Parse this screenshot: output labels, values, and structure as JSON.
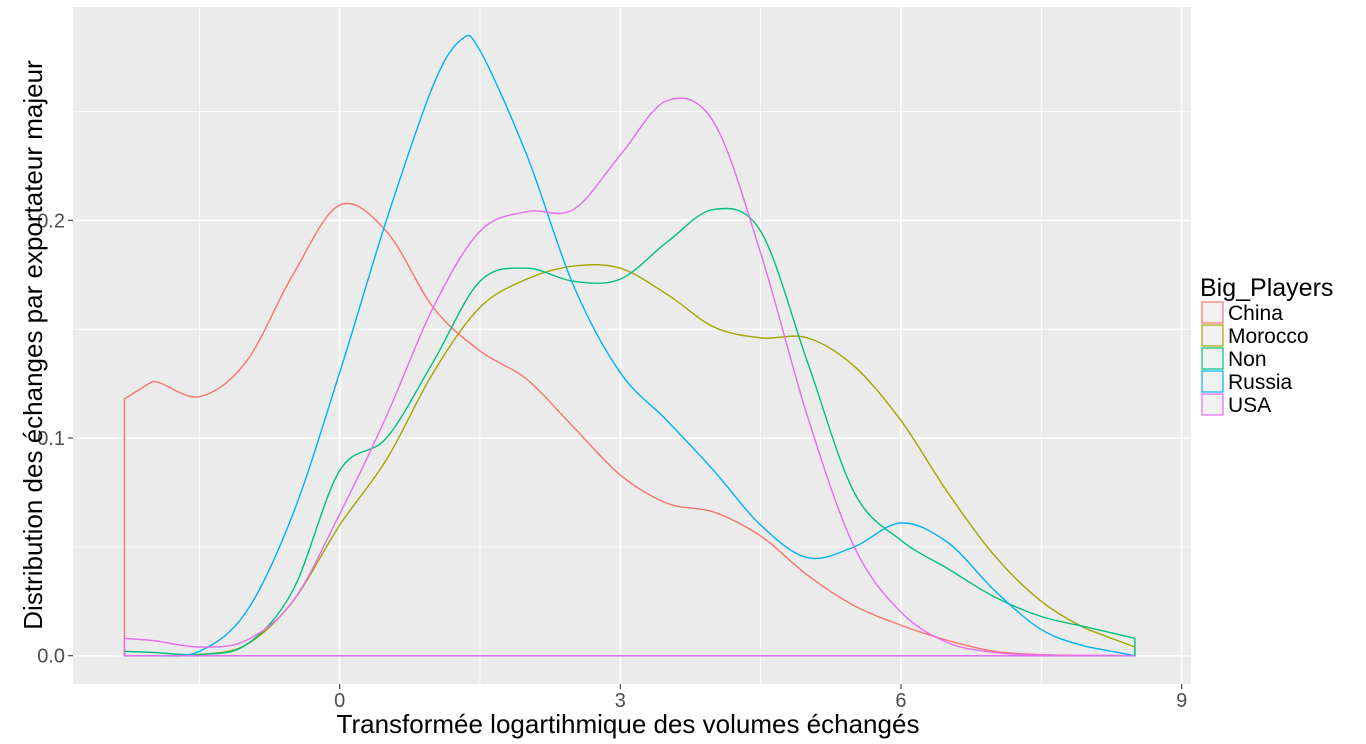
{
  "chart_data": {
    "type": "line",
    "subtype": "density",
    "xlabel": "Transformée logartihmique des volumes échangés",
    "ylabel": "Distribution des échanges par exportateur majeur",
    "xlim": [
      -2.85,
      9.1
    ],
    "ylim": [
      -0.013,
      0.298
    ],
    "x_ticks": [
      0,
      3,
      6,
      9
    ],
    "x_tick_labels": [
      "0",
      "3",
      "6",
      "9"
    ],
    "y_ticks": [
      0.0,
      0.1,
      0.2
    ],
    "y_tick_labels": [
      "0.0",
      "0.1",
      "0.2"
    ],
    "grid": true,
    "panel_background": "#ebebeb",
    "grid_color": "#ffffff",
    "legend": {
      "title": "Big_Players",
      "position": "right",
      "entries": [
        "China",
        "Morocco",
        "Non",
        "Russia",
        "USA"
      ]
    },
    "series": [
      {
        "name": "China",
        "color": "#F8766D",
        "x": [
          -2.3,
          -2.3,
          -2.0,
          -1.5,
          -1.0,
          -0.5,
          0.0,
          0.5,
          1.0,
          1.5,
          2.0,
          2.5,
          3.0,
          3.5,
          4.0,
          4.5,
          5.0,
          5.5,
          6.0,
          6.5,
          7.0,
          7.5,
          8.0,
          8.5,
          8.5
        ],
        "y": [
          0.0,
          0.118,
          0.126,
          0.119,
          0.135,
          0.175,
          0.207,
          0.195,
          0.16,
          0.14,
          0.127,
          0.105,
          0.083,
          0.07,
          0.066,
          0.055,
          0.037,
          0.023,
          0.014,
          0.007,
          0.002,
          0.0005,
          0.0001,
          0.0,
          0.0
        ]
      },
      {
        "name": "Morocco",
        "color": "#A3A500",
        "x": [
          -2.3,
          -2.0,
          -1.5,
          -1.0,
          -0.5,
          0.0,
          0.5,
          1.0,
          1.5,
          2.0,
          2.5,
          3.0,
          3.5,
          4.0,
          4.5,
          5.0,
          5.5,
          6.0,
          6.5,
          7.0,
          7.5,
          8.0,
          8.5,
          8.5,
          -2.3
        ],
        "y": [
          0.0,
          0.0,
          0.0005,
          0.005,
          0.025,
          0.06,
          0.09,
          0.13,
          0.16,
          0.173,
          0.179,
          0.178,
          0.166,
          0.151,
          0.146,
          0.146,
          0.133,
          0.108,
          0.075,
          0.046,
          0.025,
          0.012,
          0.004,
          0.0,
          0.0
        ]
      },
      {
        "name": "Non",
        "color": "#00BF7D",
        "x": [
          -2.3,
          -2.0,
          -1.5,
          -1.0,
          -0.5,
          0.0,
          0.5,
          1.0,
          1.5,
          2.0,
          2.5,
          3.0,
          3.5,
          4.0,
          4.5,
          5.0,
          5.5,
          6.0,
          6.5,
          7.0,
          7.5,
          8.0,
          8.5,
          8.5,
          -2.3
        ],
        "y": [
          0.002,
          0.0015,
          0.0006,
          0.005,
          0.03,
          0.085,
          0.1,
          0.135,
          0.172,
          0.178,
          0.172,
          0.173,
          0.19,
          0.205,
          0.195,
          0.135,
          0.075,
          0.053,
          0.04,
          0.027,
          0.018,
          0.013,
          0.008,
          0.0,
          0.0
        ]
      },
      {
        "name": "Russia",
        "color": "#00B0F6",
        "x": [
          -2.3,
          -2.0,
          -1.5,
          -1.0,
          -0.5,
          0.0,
          0.5,
          1.0,
          1.3,
          1.5,
          2.0,
          2.5,
          3.0,
          3.5,
          4.0,
          4.5,
          5.0,
          5.5,
          6.0,
          6.5,
          7.0,
          7.5,
          8.0,
          8.5,
          8.5,
          -2.3
        ],
        "y": [
          0.0,
          0.0,
          0.002,
          0.02,
          0.065,
          0.13,
          0.2,
          0.262,
          0.283,
          0.278,
          0.23,
          0.17,
          0.13,
          0.108,
          0.085,
          0.06,
          0.045,
          0.05,
          0.061,
          0.052,
          0.03,
          0.012,
          0.004,
          0.0,
          0.0,
          0.0
        ]
      },
      {
        "name": "USA",
        "color": "#E76BF3",
        "x": [
          -2.3,
          -2.0,
          -1.5,
          -1.0,
          -0.5,
          0.0,
          0.5,
          1.0,
          1.5,
          2.0,
          2.5,
          3.0,
          3.5,
          4.0,
          4.5,
          5.0,
          5.5,
          6.0,
          6.5,
          7.0,
          7.5,
          8.0,
          8.5,
          8.5,
          -2.3
        ],
        "y": [
          0.008,
          0.007,
          0.004,
          0.007,
          0.025,
          0.065,
          0.11,
          0.16,
          0.195,
          0.204,
          0.205,
          0.23,
          0.255,
          0.245,
          0.185,
          0.11,
          0.05,
          0.02,
          0.006,
          0.0015,
          0.0003,
          0.0001,
          0.0,
          0.0,
          0.0
        ]
      }
    ]
  }
}
